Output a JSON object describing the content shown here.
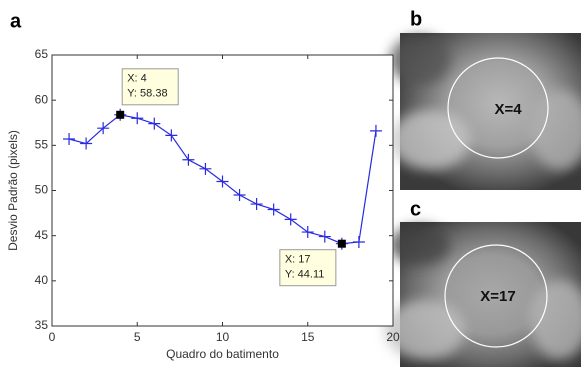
{
  "chart_data": {
    "type": "line",
    "panel_label": "a",
    "x_label": "Quadro do batimento",
    "y_label": "Desvio Padrão (pixels)",
    "x": [
      1,
      2,
      3,
      4,
      5,
      6,
      7,
      8,
      9,
      10,
      11,
      12,
      13,
      14,
      15,
      16,
      17,
      18,
      19
    ],
    "series": [
      {
        "color": "#2a2ae0",
        "marker": "plus",
        "values": [
          55.7,
          55.2,
          56.9,
          58.38,
          58.0,
          57.4,
          56.1,
          53.4,
          52.4,
          51.0,
          49.5,
          48.5,
          47.9,
          46.8,
          45.4,
          44.9,
          44.11,
          44.3,
          56.6
        ]
      }
    ],
    "xlim": [
      0,
      20
    ],
    "xticks": [
      0,
      5,
      10,
      15,
      20
    ],
    "ylim": [
      35,
      65
    ],
    "yticks": [
      35,
      40,
      45,
      50,
      55,
      60,
      65
    ],
    "annotations": [
      {
        "x": 4,
        "y": 58.38,
        "lines": [
          "X: 4",
          "Y: 58.38"
        ]
      },
      {
        "x": 17,
        "y": 44.11,
        "lines": [
          "X: 17",
          "Y: 44.11"
        ]
      }
    ]
  },
  "panels": [
    {
      "label": "b",
      "text": "X=4"
    },
    {
      "label": "c",
      "text": "X=17"
    }
  ]
}
